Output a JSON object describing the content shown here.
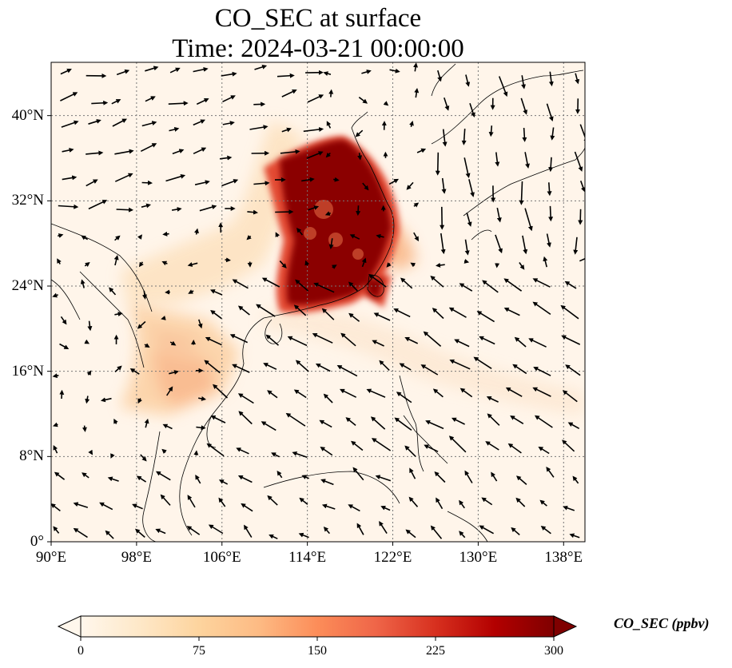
{
  "title": {
    "line1": "CO_SEC at surface",
    "line2": "Time: 2024-03-21 00:00:00"
  },
  "map": {
    "lon_range": [
      90,
      140
    ],
    "lat_range": [
      0,
      45
    ],
    "x_ticks": [
      "90°E",
      "98°E",
      "106°E",
      "114°E",
      "122°E",
      "130°E",
      "138°E"
    ],
    "x_tick_values": [
      90,
      98,
      106,
      114,
      122,
      130,
      138
    ],
    "y_ticks": [
      "0°",
      "8°N",
      "16°N",
      "24°N",
      "32°N",
      "40°N"
    ],
    "y_tick_values": [
      0,
      8,
      16,
      24,
      32,
      40
    ],
    "gridlines": "dotted",
    "variable": "CO_SEC",
    "wind_vectors": true
  },
  "colorbar": {
    "label": "CO_SEC (ppbv)",
    "ticks": [
      "0",
      "75",
      "150",
      "225",
      "300"
    ],
    "tick_values": [
      0,
      75,
      150,
      225,
      300
    ],
    "range": [
      0,
      300
    ],
    "colormap": "OrRd",
    "colors": [
      "#fff7ec",
      "#fee8c8",
      "#fdd49e",
      "#fdbb84",
      "#fc8d59",
      "#ef6548",
      "#d7301f",
      "#b30000",
      "#7f0000"
    ],
    "extend": "both"
  }
}
